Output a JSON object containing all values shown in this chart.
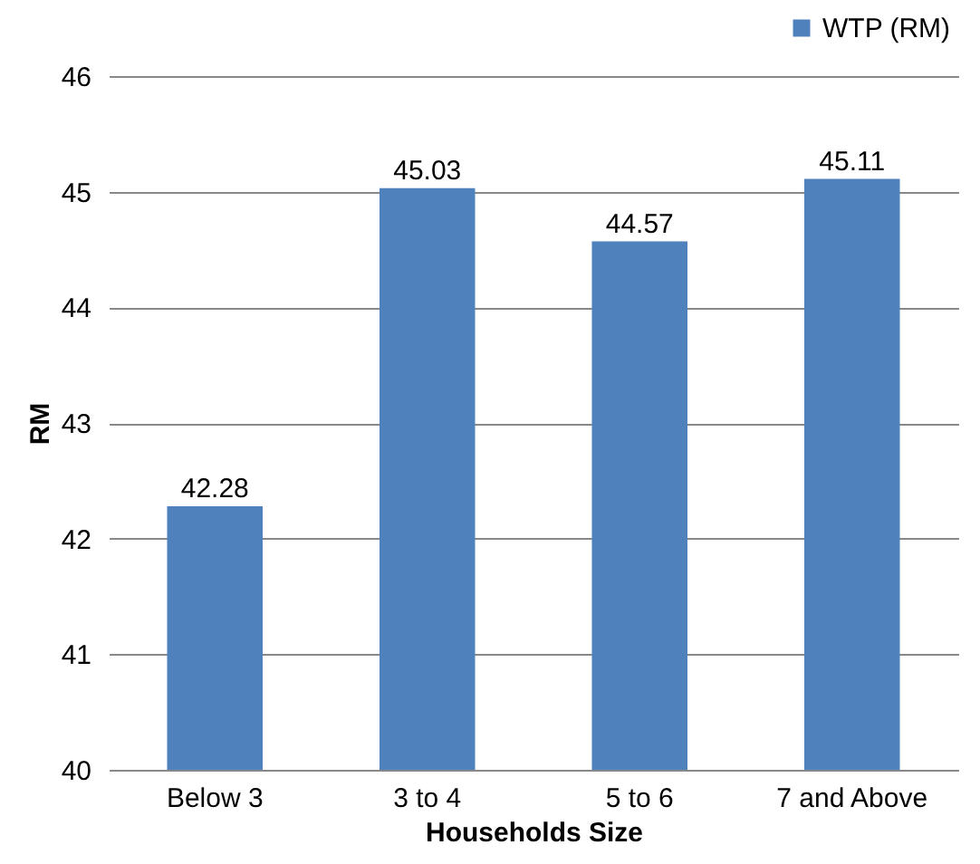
{
  "chart_data": {
    "type": "bar",
    "xlabel": "Households Size",
    "ylabel": "RM",
    "categories": [
      "Below 3",
      "3 to 4",
      "5 to 6",
      "7 and Above"
    ],
    "series": [
      {
        "name": "WTP  (RM)",
        "color": "#4f81bd",
        "values": [
          42.28,
          45.03,
          44.57,
          45.11
        ]
      }
    ],
    "ylim": [
      40,
      46
    ],
    "yticks": [
      40,
      41,
      42,
      43,
      44,
      45,
      46
    ],
    "grid": "y",
    "legend": "top right",
    "data_labels": true
  }
}
